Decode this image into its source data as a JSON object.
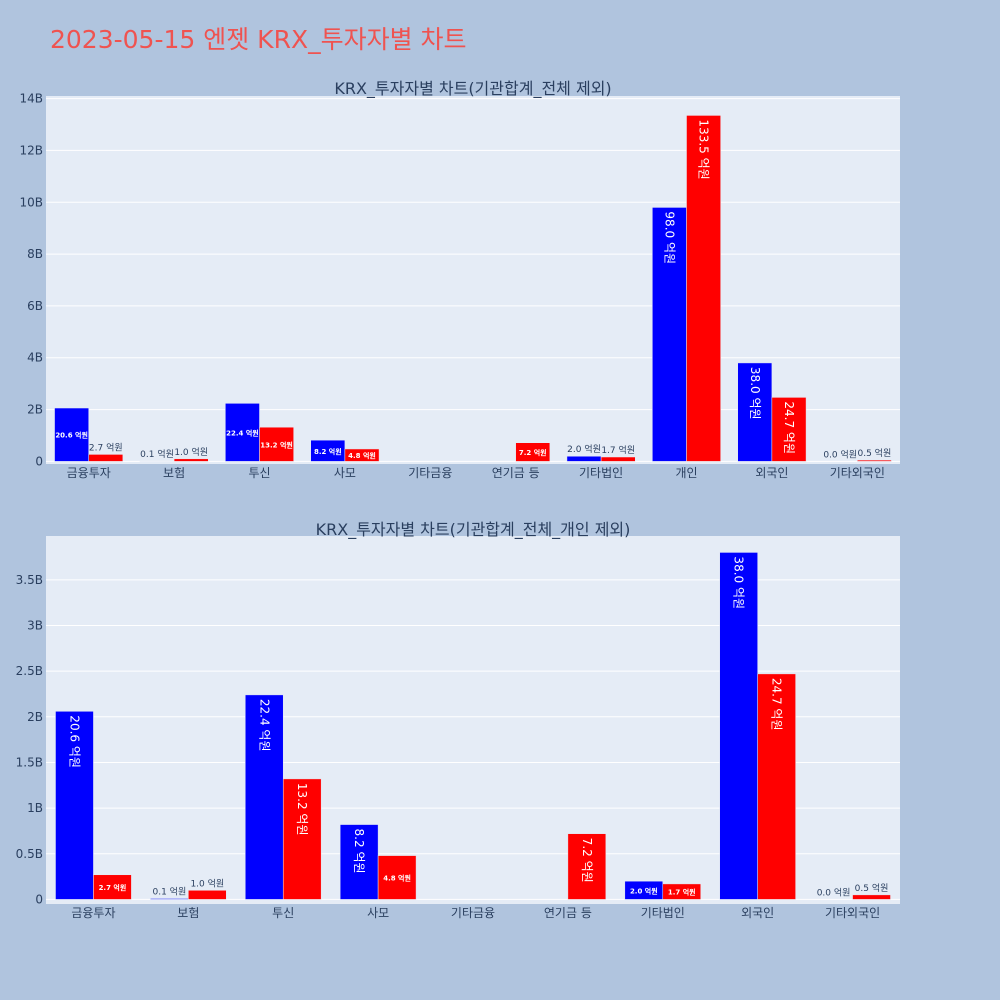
{
  "title": "2023-05-15 엔젯 KRX_투자자별 차트",
  "colors": {
    "background": "#b0c4de",
    "plot_bg": "#e5ecf6",
    "grid": "#ffffff",
    "buy": "#0000ff",
    "sell": "#ff0000",
    "title": "#ef5350",
    "text": "#2a3f5f"
  },
  "chart_data": [
    {
      "type": "bar",
      "title": "KRX_투자자별 차트(기관합계_전체 제외)",
      "categories": [
        "금융투자",
        "보험",
        "투신",
        "사모",
        "기타금융",
        "연기금 등",
        "기타법인",
        "개인",
        "외국인",
        "기타외국인"
      ],
      "series": [
        {
          "color": "#0000ff",
          "values": [
            2.06,
            0.01,
            2.24,
            0.82,
            0,
            0,
            0.2,
            9.8,
            3.8,
            0.0
          ],
          "labels": [
            "20.6 억원",
            "0.1 억원",
            "22.4 억원",
            "8.2 억원",
            "",
            "",
            "2.0 억원",
            "98.0 억원",
            "38.0 억원",
            "0.0 억원"
          ]
        },
        {
          "color": "#ff0000",
          "values": [
            0.27,
            0.1,
            1.32,
            0.48,
            0,
            0.72,
            0.17,
            13.35,
            2.47,
            0.05
          ],
          "labels": [
            "2.7 억원",
            "1.0 억원",
            "13.2 억원",
            "4.8 억원",
            "",
            "7.2 억원",
            "1.7 억원",
            "133.5 억원",
            "24.7 억원",
            "0.5 억원"
          ]
        }
      ],
      "y_ticks": [
        {
          "value": 0,
          "label": "0"
        },
        {
          "value": 2,
          "label": "2B"
        },
        {
          "value": 4,
          "label": "4B"
        },
        {
          "value": 6,
          "label": "6B"
        },
        {
          "value": 8,
          "label": "8B"
        },
        {
          "value": 10,
          "label": "10B"
        },
        {
          "value": 12,
          "label": "12B"
        },
        {
          "value": 14,
          "label": "14B"
        }
      ],
      "ylim": [
        -0.1,
        14.1
      ],
      "grid": true
    },
    {
      "type": "bar",
      "title": "KRX_투자자별 차트(기관합계_전체_개인 제외)",
      "categories": [
        "금융투자",
        "보험",
        "투신",
        "사모",
        "기타금융",
        "연기금 등",
        "기타법인",
        "외국인",
        "기타외국인"
      ],
      "series": [
        {
          "color": "#0000ff",
          "values": [
            2.06,
            0.01,
            2.24,
            0.82,
            0,
            0,
            0.2,
            3.8,
            0.0
          ],
          "labels": [
            "20.6 억원",
            "0.1 억원",
            "22.4 억원",
            "8.2 억원",
            "",
            "",
            "2.0 억원",
            "38.0 억원",
            "0.0 억원"
          ]
        },
        {
          "color": "#ff0000",
          "values": [
            0.27,
            0.1,
            1.32,
            0.48,
            0,
            0.72,
            0.17,
            2.47,
            0.05
          ],
          "labels": [
            "2.7 억원",
            "1.0 억원",
            "13.2 억원",
            "4.8 억원",
            "",
            "7.2 억원",
            "1.7 억원",
            "24.7 억원",
            "0.5 억원"
          ]
        }
      ],
      "y_ticks": [
        {
          "value": 0,
          "label": "0"
        },
        {
          "value": 0.5,
          "label": "0.5B"
        },
        {
          "value": 1,
          "label": "1B"
        },
        {
          "value": 1.5,
          "label": "1.5B"
        },
        {
          "value": 2,
          "label": "2B"
        },
        {
          "value": 2.5,
          "label": "2.5B"
        },
        {
          "value": 3,
          "label": "3B"
        },
        {
          "value": 3.5,
          "label": "3.5B"
        }
      ],
      "ylim": [
        -0.05,
        3.98
      ],
      "grid": true
    }
  ]
}
